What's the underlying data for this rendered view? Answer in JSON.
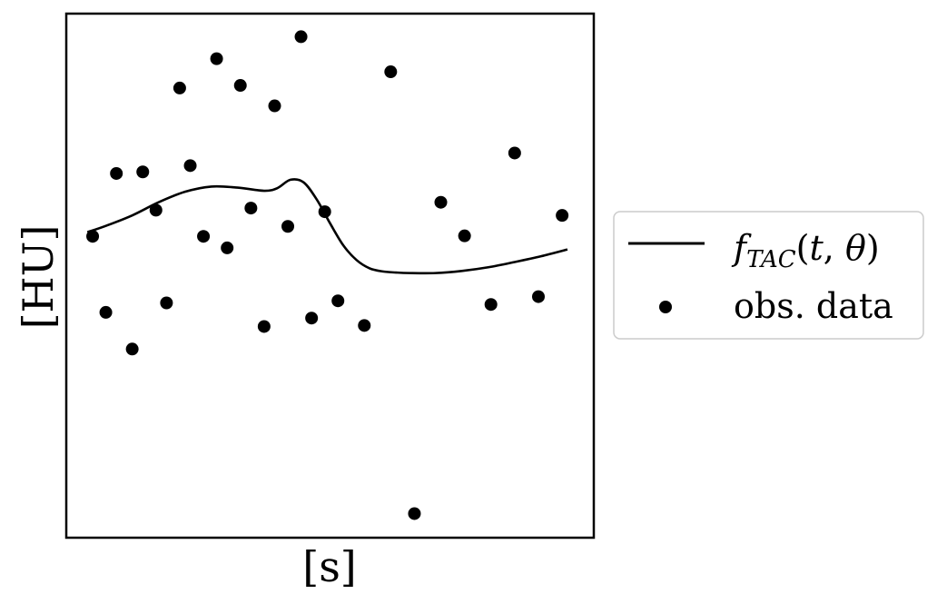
{
  "chart_data": {
    "type": "scatter",
    "xlabel": "[s]",
    "ylabel": "[HU]",
    "xlim": [
      0,
      20
    ],
    "ylim": [
      0,
      100
    ],
    "ticks": false,
    "grid": false,
    "legend_position": "outside-right",
    "series": [
      {
        "name": "f_TAC(t, θ)",
        "kind": "line",
        "color": "#000000",
        "x": [
          0.8,
          1.5,
          2.5,
          3.5,
          4.5,
          5.5,
          6.5,
          7.5,
          8.0,
          8.5,
          9.0,
          9.5,
          10.0,
          10.5,
          11.0,
          11.5,
          12.0,
          12.5,
          13.0,
          14.0,
          15.0,
          16.0,
          17.0,
          18.0,
          19.0
        ],
        "y": [
          58.3,
          59.5,
          61.5,
          64.0,
          66.0,
          67.0,
          66.8,
          66.2,
          66.7,
          68.3,
          67.8,
          64.5,
          60.0,
          55.8,
          53.0,
          51.4,
          50.8,
          50.6,
          50.5,
          50.5,
          50.9,
          51.6,
          52.6,
          53.7,
          55.0
        ]
      },
      {
        "name": "obs. data",
        "kind": "scatter",
        "color": "#000000",
        "x": [
          1.0,
          1.5,
          1.9,
          2.5,
          2.9,
          3.4,
          3.8,
          4.3,
          4.7,
          5.2,
          5.7,
          6.1,
          6.6,
          7.0,
          7.5,
          7.9,
          8.4,
          8.9,
          9.3,
          9.8,
          10.3,
          11.3,
          12.3,
          13.2,
          14.2,
          15.1,
          16.1,
          17.0,
          17.9,
          18.8
        ],
        "y": [
          57.5,
          43.0,
          69.5,
          36.0,
          69.8,
          62.5,
          44.8,
          85.8,
          71.0,
          57.5,
          91.4,
          55.3,
          86.3,
          62.9,
          40.3,
          82.4,
          59.4,
          95.6,
          41.9,
          62.2,
          45.2,
          40.5,
          88.9,
          4.6,
          64.0,
          57.6,
          44.5,
          73.4,
          46.0,
          61.5
        ]
      }
    ]
  }
}
